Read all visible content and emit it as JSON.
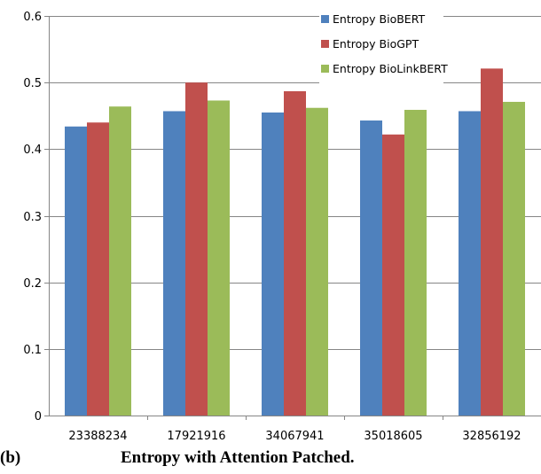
{
  "chart_data": {
    "type": "bar",
    "categories": [
      "23388234",
      "17921916",
      "34067941",
      "35018605",
      "32856192"
    ],
    "series": [
      {
        "name": "Entropy BioBERT",
        "values": [
          0.434,
          0.457,
          0.455,
          0.443,
          0.457
        ],
        "color": "#4f81bd"
      },
      {
        "name": "Entropy BioGPT",
        "values": [
          0.44,
          0.5,
          0.487,
          0.422,
          0.521
        ],
        "color": "#c0504d"
      },
      {
        "name": "Entropy BioLinkBERT",
        "values": [
          0.464,
          0.473,
          0.462,
          0.459,
          0.471
        ],
        "color": "#9bbb59"
      }
    ],
    "ylim": [
      0,
      0.6
    ],
    "yticks": [
      "0",
      "0.1",
      "0.2",
      "0.3",
      "0.4",
      "0.5",
      "0.6"
    ],
    "ytick_values": [
      0,
      0.1,
      0.2,
      0.3,
      0.4,
      0.5,
      0.6
    ],
    "grid": true,
    "legend_position": "top-right",
    "title": "",
    "xlabel": "",
    "ylabel": ""
  },
  "caption": {
    "label": "(b)",
    "text": "Entropy with Attention Patched."
  }
}
